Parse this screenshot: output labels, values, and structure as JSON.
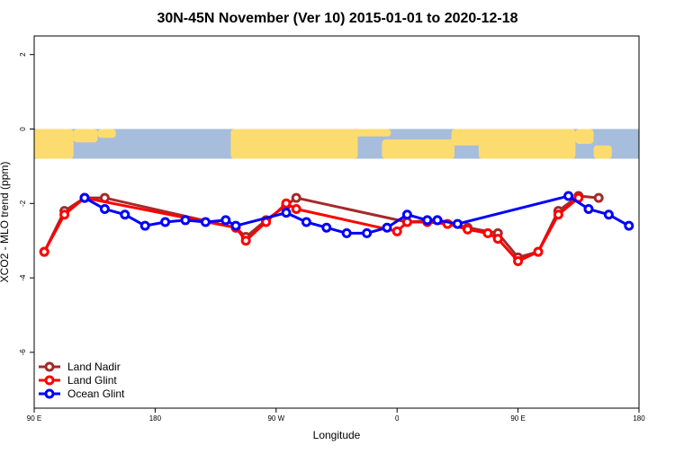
{
  "chart_data": {
    "type": "line",
    "title": "30N-45N November (Ver 10)   2015-01-01 to 2020-12-18",
    "xlabel": "Longitude",
    "ylabel": "XCO2 - MLO trend (ppm)",
    "xlim": [
      -90,
      270
    ],
    "ylim": [
      -7.5,
      2.5
    ],
    "x_ticks": [
      {
        "value": -90,
        "label": "90 E"
      },
      {
        "value": -18,
        "label": "180"
      },
      {
        "value": 54,
        "label": "90 W"
      },
      {
        "value": 126,
        "label": "0"
      },
      {
        "value": 198,
        "label": "90 E"
      },
      {
        "value": 270,
        "label": "180"
      }
    ],
    "y_ticks": [
      {
        "value": 2,
        "label": "2"
      },
      {
        "value": 0,
        "label": "0"
      },
      {
        "value": -2,
        "label": "-2"
      },
      {
        "value": -4,
        "label": "-4"
      },
      {
        "value": -6,
        "label": "-6"
      }
    ],
    "map_band": {
      "y_top": 0,
      "y_bottom": -0.8,
      "ocean_color": "#a6bddb",
      "land_color": "#fddc6f"
    },
    "legend_position": "bottom-left",
    "series": [
      {
        "name": "Land Nadir",
        "color": "#a52a2a",
        "x": [
          -84,
          -72,
          -60,
          -48,
          30,
          36,
          48,
          60,
          66,
          132,
          150,
          168,
          186,
          198,
          210,
          222,
          234,
          246
        ],
        "values": [
          -3.3,
          -2.2,
          -1.85,
          -1.85,
          -2.65,
          -2.9,
          -2.45,
          -2.05,
          -1.85,
          -2.5,
          -2.45,
          -2.65,
          -2.8,
          -3.45,
          -3.3,
          -2.2,
          -1.8,
          -1.85
        ]
      },
      {
        "name": "Land Glint",
        "color": "#ff0000",
        "x": [
          -84,
          -72,
          -60,
          30,
          36,
          48,
          60,
          66,
          126,
          132,
          144,
          156,
          168,
          180,
          186,
          198,
          210,
          222,
          234
        ],
        "values": [
          -3.3,
          -2.3,
          -1.85,
          -2.65,
          -3.0,
          -2.5,
          -2.0,
          -2.15,
          -2.75,
          -2.5,
          -2.5,
          -2.55,
          -2.7,
          -2.8,
          -2.95,
          -3.55,
          -3.3,
          -2.3,
          -1.85
        ]
      },
      {
        "name": "Ocean Glint",
        "color": "#0000ff",
        "x": [
          -60,
          -48,
          -36,
          -24,
          -12,
          0,
          12,
          24,
          30,
          60,
          72,
          84,
          96,
          108,
          120,
          132,
          144,
          150,
          162,
          228,
          240,
          252,
          264
        ],
        "values": [
          -1.85,
          -2.15,
          -2.3,
          -2.6,
          -2.5,
          -2.45,
          -2.5,
          -2.45,
          -2.6,
          -2.25,
          -2.5,
          -2.65,
          -2.8,
          -2.8,
          -2.65,
          -2.3,
          -2.45,
          -2.45,
          -2.55,
          -1.8,
          -2.15,
          -2.3,
          -2.6
        ]
      }
    ]
  }
}
